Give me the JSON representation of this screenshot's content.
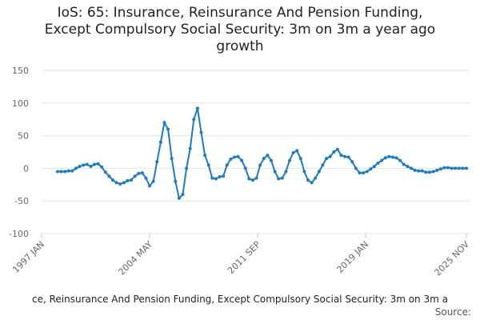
{
  "chart_data": {
    "type": "line",
    "title": [
      "IoS: 65: Insurance, Reinsurance And Pension Funding,",
      "Except Compulsory Social Security: 3m on 3m a year ago",
      "growth"
    ],
    "footer": "ce, Reinsurance And Pension Funding, Except Compulsory Social Security: 3m on 3m a",
    "source": "Source:",
    "x": [
      "1998 FEB",
      "1998 MAY",
      "1998 AUG",
      "1998 NOV",
      "1999 FEB",
      "1999 MAY",
      "1999 AUG",
      "1999 NOV",
      "2000 FEB",
      "2000 MAY",
      "2000 AUG",
      "2000 NOV",
      "2001 FEB",
      "2001 MAY",
      "2001 AUG",
      "2001 NOV",
      "2002 FEB",
      "2002 MAY",
      "2002 AUG",
      "2002 NOV",
      "2003 FEB",
      "2003 MAY",
      "2003 AUG",
      "2003 NOV",
      "2004 FEB",
      "2004 MAY",
      "2004 AUG",
      "2004 NOV",
      "2005 FEB",
      "2005 MAY",
      "2005 AUG",
      "2005 NOV",
      "2006 FEB",
      "2006 MAY",
      "2006 AUG",
      "2006 NOV",
      "2007 FEB",
      "2007 MAY",
      "2007 AUG",
      "2007 NOV",
      "2008 FEB",
      "2008 MAY",
      "2008 AUG",
      "2008 NOV",
      "2009 FEB",
      "2009 MAY",
      "2009 AUG",
      "2009 NOV",
      "2010 FEB",
      "2010 MAY",
      "2010 AUG",
      "2010 NOV",
      "2011 FEB",
      "2011 MAY",
      "2011 AUG",
      "2011 NOV",
      "2012 FEB",
      "2012 MAY",
      "2012 AUG",
      "2012 NOV",
      "2013 FEB",
      "2013 MAY",
      "2013 AUG",
      "2013 NOV",
      "2014 FEB",
      "2014 MAY",
      "2014 AUG",
      "2014 NOV",
      "2015 FEB",
      "2015 MAY",
      "2015 AUG",
      "2015 NOV",
      "2016 FEB",
      "2016 MAY",
      "2016 AUG",
      "2016 NOV",
      "2017 FEB",
      "2017 MAY",
      "2017 AUG",
      "2017 NOV",
      "2018 FEB",
      "2018 MAY",
      "2018 AUG",
      "2018 NOV",
      "2019 FEB",
      "2019 MAY",
      "2019 AUG",
      "2019 NOV",
      "2020 FEB",
      "2020 MAY",
      "2020 AUG",
      "2020 NOV",
      "2021 FEB",
      "2021 MAY",
      "2021 AUG",
      "2021 NOV",
      "2022 FEB",
      "2022 MAY",
      "2022 AUG",
      "2022 NOV",
      "2023 FEB",
      "2023 MAY",
      "2023 AUG",
      "2023 NOV",
      "2024 FEB",
      "2024 MAY",
      "2024 AUG",
      "2024 NOV",
      "2025 FEB",
      "2025 MAY",
      "2025 AUG",
      "2025 NOV"
    ],
    "values": [
      -5,
      -5,
      -5,
      -4,
      -4,
      0,
      3,
      5,
      6,
      3,
      6,
      7,
      2,
      -6,
      -12,
      -18,
      -22,
      -24,
      -22,
      -19,
      -18,
      -12,
      -8,
      -7,
      -15,
      -27,
      -20,
      10,
      40,
      70,
      60,
      15,
      -20,
      -46,
      -40,
      0,
      30,
      75,
      92,
      55,
      20,
      5,
      -15,
      -16,
      -13,
      -12,
      5,
      14,
      17,
      18,
      12,
      0,
      -16,
      -18,
      -15,
      5,
      15,
      20,
      12,
      -5,
      -16,
      -15,
      -5,
      12,
      24,
      27,
      15,
      -5,
      -18,
      -22,
      -15,
      -5,
      5,
      15,
      18,
      25,
      29,
      20,
      18,
      17,
      10,
      0,
      -7,
      -7,
      -5,
      -1,
      3,
      8,
      12,
      16,
      18,
      17,
      16,
      12,
      6,
      3,
      0,
      -3,
      -4,
      -4,
      -6,
      -6,
      -5,
      -3,
      -1,
      1,
      1,
      0,
      0,
      0,
      0,
      0
    ],
    "color": "#1f7bbf",
    "xlim": [
      "1997 JAN",
      "2025 NOV"
    ],
    "xticks": [
      "1997 JAN",
      "2004 MAY",
      "2011 SEP",
      "2019 JAN",
      "2025 NOV"
    ],
    "ylim": [
      -100,
      150
    ],
    "yticks": [
      -100,
      -50,
      0,
      50,
      100,
      150
    ],
    "grid": true
  }
}
